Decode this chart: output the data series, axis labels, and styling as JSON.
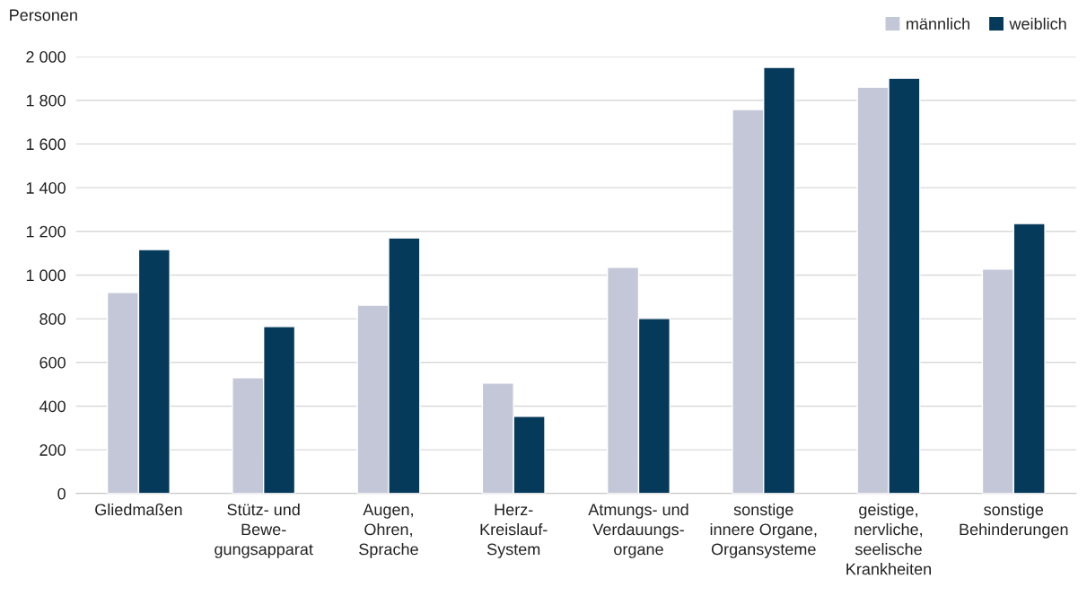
{
  "chart_data": {
    "type": "bar",
    "ylabel": "Personen",
    "categories": [
      "Gliedmaßen",
      "Stütz- und\nBewe-\ngungsapparat",
      "Augen,\nOhren,\nSprache",
      "Herz-\nKreislauf-\nSystem",
      "Atmungs- und\nVerdauungs-\norgane",
      "sonstige\ninnere Organe,\nOrgansysteme",
      "geistige,\nnervliche,\nseelische\nKrankheiten",
      "sonstige\nBehinderungen"
    ],
    "series": [
      {
        "name": "männlich",
        "color": "#c4c7d8",
        "values": [
          920,
          530,
          862,
          505,
          1035,
          1758,
          1860,
          1027
        ]
      },
      {
        "name": "weiblich",
        "color": "#063a5a",
        "values": [
          1117,
          764,
          1170,
          353,
          801,
          1951,
          1901,
          1236
        ]
      }
    ],
    "ylim": [
      0,
      2000
    ],
    "yticks": [
      0,
      200,
      400,
      600,
      800,
      {
        "value": 1000,
        "label": "1 000"
      },
      {
        "value": 1200,
        "label": "1 200"
      },
      {
        "value": 1400,
        "label": "1 400"
      },
      {
        "value": 1600,
        "label": "1 600"
      },
      {
        "value": 1800,
        "label": "1 800"
      },
      {
        "value": 2000,
        "label": "2 000"
      }
    ],
    "grid": "y",
    "legend": "top right"
  }
}
